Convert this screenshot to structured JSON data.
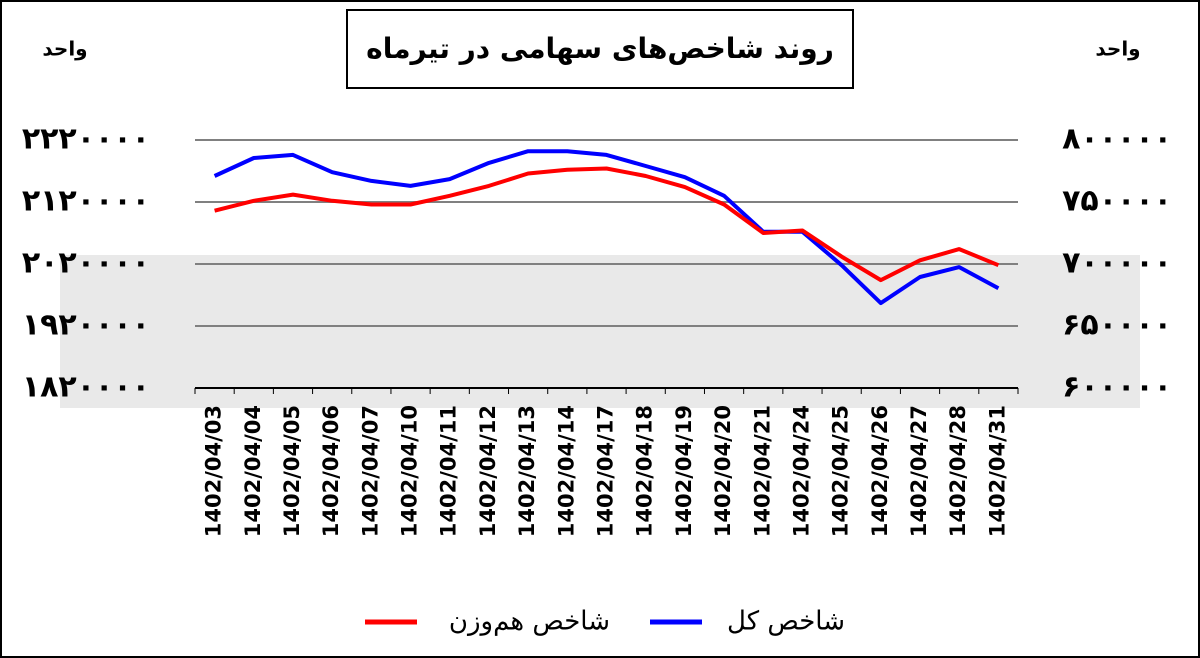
{
  "chart_data": {
    "type": "line",
    "title": "روند شاخص‌های سهامی در تیرماه",
    "y_label": "واحد",
    "y2_label": "واحد",
    "categories": [
      "1402/04/03",
      "1402/04/04",
      "1402/04/05",
      "1402/04/06",
      "1402/04/07",
      "1402/04/10",
      "1402/04/11",
      "1402/04/12",
      "1402/04/13",
      "1402/04/14",
      "1402/04/17",
      "1402/04/18",
      "1402/04/19",
      "1402/04/20",
      "1402/04/21",
      "1402/04/24",
      "1402/04/25",
      "1402/04/26",
      "1402/04/27",
      "1402/04/28",
      "1402/04/31"
    ],
    "series": [
      {
        "name": "شاخص کل",
        "color": "#0000ff",
        "axis": "y",
        "values": [
          2162000,
          2191000,
          2196000,
          2168000,
          2154000,
          2146000,
          2157000,
          2183000,
          2202000,
          2202000,
          2196000,
          2178000,
          2160000,
          2130000,
          2072000,
          2072000,
          2018000,
          1957000,
          1999000,
          2015000,
          1981000
        ]
      },
      {
        "name": "شاخص هم‌وزن",
        "color": "#ff0000",
        "axis": "y2",
        "values": [
          743000,
          751000,
          756000,
          751000,
          748000,
          748000,
          755000,
          763000,
          773000,
          776000,
          777000,
          771000,
          762000,
          748000,
          725000,
          727000,
          706000,
          687000,
          703000,
          712000,
          699000
        ]
      }
    ],
    "ylim": [
      1820000,
      2220000
    ],
    "yticks": [
      {
        "value": 2220000,
        "label": "۲۲۲۰۰۰۰"
      },
      {
        "value": 2120000,
        "label": "۲۱۲۰۰۰۰"
      },
      {
        "value": 2020000,
        "label": "۲۰۲۰۰۰۰"
      },
      {
        "value": 1920000,
        "label": "۱۹۲۰۰۰۰"
      },
      {
        "value": 1820000,
        "label": "۱۸۲۰۰۰۰"
      }
    ],
    "y2lim": [
      600000,
      800000
    ],
    "y2ticks": [
      {
        "value": 800000,
        "label": "۸۰۰۰۰۰"
      },
      {
        "value": 750000,
        "label": "۷۵۰۰۰۰"
      },
      {
        "value": 700000,
        "label": "۷۰۰۰۰۰"
      },
      {
        "value": 650000,
        "label": "۶۵۰۰۰۰"
      },
      {
        "value": 600000,
        "label": "۶۰۰۰۰۰"
      }
    ],
    "grid": true
  }
}
